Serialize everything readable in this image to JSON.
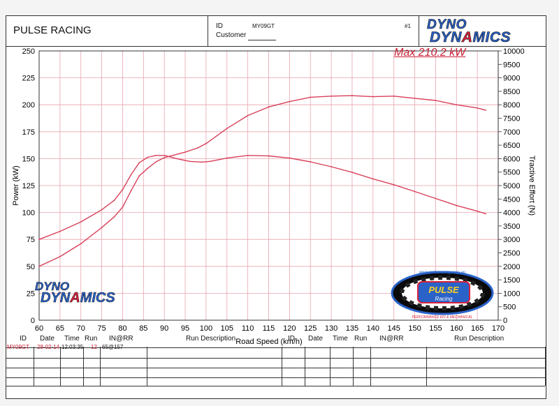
{
  "header": {
    "title": "PULSE RACING",
    "id_label": "ID",
    "id_value": "MY09GT",
    "customer_label": "Customer",
    "run_number": "#1",
    "brand_line1": "DYNO",
    "brand_line2_a": "DYN",
    "brand_line2_b": "A",
    "brand_line2_c": "MICS"
  },
  "annotation": "Max 210.2 kW",
  "logo_bottom": {
    "line1": "DYNO",
    "line2_a": "DYN",
    "line2_b": "A",
    "line2_c": "MICS"
  },
  "pulse_logo": {
    "url_text": "www.pulseracing.com.au",
    "word1": "PULSE",
    "word2": "Racing",
    "tagline": "PERFORMANCE EFI & MECHANICAL"
  },
  "colors": {
    "curve": "#d8405a",
    "grid": "#e9a3ad",
    "axis_text": "#111111"
  },
  "chart_data": {
    "type": "line",
    "xlabel": "Road Speed (km/h)",
    "ylabel": "Power (kW)",
    "y2label": "Tractive Effort (N)",
    "xlim": [
      60,
      170
    ],
    "ylim": [
      0,
      250
    ],
    "y2lim": [
      0,
      10000
    ],
    "xticks": [
      60,
      65,
      70,
      75,
      80,
      85,
      90,
      95,
      100,
      105,
      110,
      115,
      120,
      125,
      130,
      135,
      140,
      145,
      150,
      155,
      160,
      165,
      170
    ],
    "yticks": [
      0,
      25,
      50,
      75,
      100,
      125,
      150,
      175,
      200,
      225,
      250
    ],
    "y2ticks": [
      0,
      500,
      1000,
      1500,
      2000,
      2500,
      3000,
      3500,
      4000,
      4500,
      5000,
      5500,
      6000,
      6500,
      7000,
      7500,
      8000,
      8500,
      9000,
      9500,
      10000
    ],
    "series": [
      {
        "axis": "left",
        "x": [
          60,
          65,
          70,
          75,
          78,
          80,
          82,
          84,
          86,
          88,
          90,
          95,
          98,
          100,
          105,
          110,
          115,
          120,
          125,
          130,
          135,
          140,
          145,
          150,
          155,
          160,
          165,
          167
        ],
        "values": [
          50,
          59,
          71,
          86,
          96,
          105,
          120,
          134,
          141,
          147,
          151,
          156,
          160,
          164,
          178,
          190,
          198,
          203,
          207,
          208,
          208.5,
          207.5,
          208,
          206,
          204,
          200,
          197,
          195
        ]
      },
      {
        "axis": "right",
        "x": [
          60,
          65,
          70,
          75,
          78,
          80,
          82,
          84,
          86,
          88,
          90,
          93,
          96,
          99,
          101,
          105,
          110,
          115,
          120,
          125,
          130,
          135,
          140,
          145,
          150,
          155,
          160,
          165,
          167
        ],
        "values": [
          3000,
          3300,
          3650,
          4100,
          4450,
          4850,
          5400,
          5850,
          6050,
          6120,
          6120,
          6000,
          5900,
          5870,
          5900,
          6020,
          6120,
          6100,
          6020,
          5880,
          5700,
          5490,
          5250,
          5030,
          4780,
          4520,
          4260,
          4050,
          3950
        ]
      }
    ],
    "grid": true
  },
  "table": {
    "headers": [
      "ID",
      "Date",
      "Time",
      "Run",
      "IN@RR",
      "Run Description",
      "ID",
      "Date",
      "Time",
      "Run",
      "IN@RR",
      "Run Description"
    ],
    "row1": [
      "MY09GT",
      "28-02-14",
      "12:03:35",
      "12",
      "65@157"
    ]
  }
}
